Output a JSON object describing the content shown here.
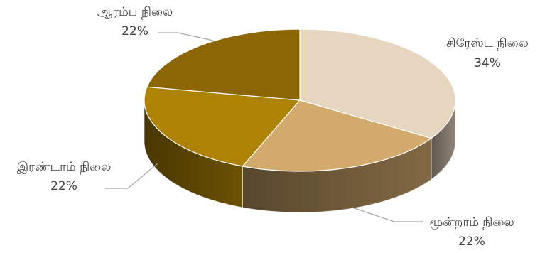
{
  "chart_data": {
    "type": "pie",
    "style": "3d",
    "title": "",
    "legend": "none",
    "slices": [
      {
        "label": "சிரேஸ்ட நிலை",
        "value": 34,
        "value_label": "34%",
        "color": "#E6D5BF"
      },
      {
        "label": "மூன்றாம் நிலை",
        "value": 22,
        "value_label": "22%",
        "color": "#D1AA6C"
      },
      {
        "label": "இரண்டாம் நிலை",
        "value": 22,
        "value_label": "22%",
        "color": "#AE8205"
      },
      {
        "label": "ஆரம்ப நிலை",
        "value": 22,
        "value_label": "22%",
        "color": "#8C6605"
      }
    ]
  }
}
